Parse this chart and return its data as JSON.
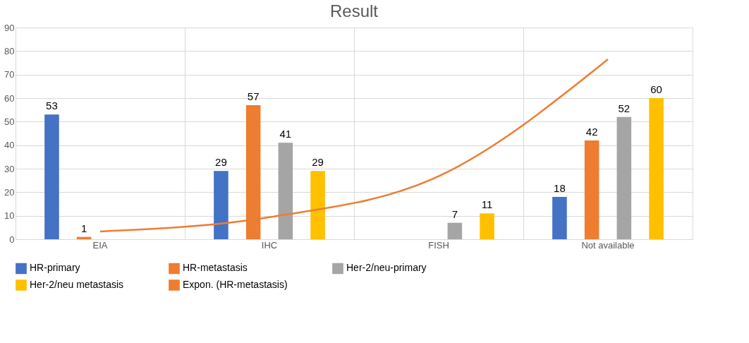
{
  "chart_data": {
    "type": "bar",
    "title": "Result",
    "categories": [
      "EIA",
      "IHC",
      "FISH",
      "Not available"
    ],
    "series": [
      {
        "name": "HR-primary",
        "color": "#4472c4",
        "values": [
          53,
          29,
          null,
          18
        ],
        "value_labels": [
          "53",
          "29",
          null,
          "18"
        ]
      },
      {
        "name": "HR-metastasis",
        "color": "#ed7d31",
        "values": [
          1,
          57,
          null,
          42
        ],
        "value_labels": [
          "1",
          "57",
          null,
          "42"
        ]
      },
      {
        "name": "Her-2/neu-primary",
        "color": "#a5a5a5",
        "values": [
          null,
          41,
          7,
          52
        ],
        "value_labels": [
          null,
          "41",
          "7",
          "52"
        ]
      },
      {
        "name": "Her-2/neu metastasis",
        "color": "#ffc000",
        "values": [
          null,
          29,
          11,
          60
        ],
        "value_labels": [
          null,
          "29",
          "11",
          "60"
        ]
      },
      {
        "name": "Expon. (HR-metastasis)",
        "color": "#ed7d31",
        "type": "line",
        "values": [
          3.3,
          9.4,
          26.8,
          76.5
        ]
      }
    ],
    "ylim": [
      0,
      90
    ],
    "yticks": [
      0,
      10,
      20,
      30,
      40,
      50,
      60,
      70,
      80,
      90
    ],
    "grid": true,
    "legend": "bottom"
  }
}
